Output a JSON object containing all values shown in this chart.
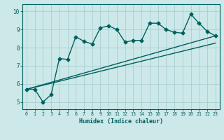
{
  "title": "",
  "xlabel": "Humidex (Indice chaleur)",
  "bg_color": "#cce8e8",
  "line_color": "#005f5f",
  "grid_color": "#aad0d0",
  "xlim": [
    -0.5,
    23.5
  ],
  "ylim": [
    4.6,
    10.4
  ],
  "xticks": [
    0,
    1,
    2,
    3,
    4,
    5,
    6,
    7,
    8,
    9,
    10,
    11,
    12,
    13,
    14,
    15,
    16,
    17,
    18,
    19,
    20,
    21,
    22,
    23
  ],
  "yticks": [
    5,
    6,
    7,
    8,
    9,
    10
  ],
  "series1_x": [
    0,
    1,
    2,
    3,
    4,
    5,
    6,
    7,
    8,
    9,
    10,
    11,
    12,
    13,
    14,
    15,
    16,
    17,
    18,
    19,
    20,
    21,
    22,
    23
  ],
  "series1_y": [
    5.7,
    5.7,
    5.0,
    5.4,
    7.4,
    7.35,
    8.6,
    8.35,
    8.2,
    9.1,
    9.2,
    9.0,
    8.3,
    8.4,
    8.4,
    9.35,
    9.35,
    9.0,
    8.85,
    8.8,
    9.85,
    9.35,
    8.9,
    8.65
  ],
  "series2_x": [
    0,
    23
  ],
  "series2_y": [
    5.7,
    8.65
  ],
  "series3_x": [
    0,
    23
  ],
  "series3_y": [
    5.7,
    8.25
  ],
  "marker_size": 2.5,
  "line_width": 1.0
}
